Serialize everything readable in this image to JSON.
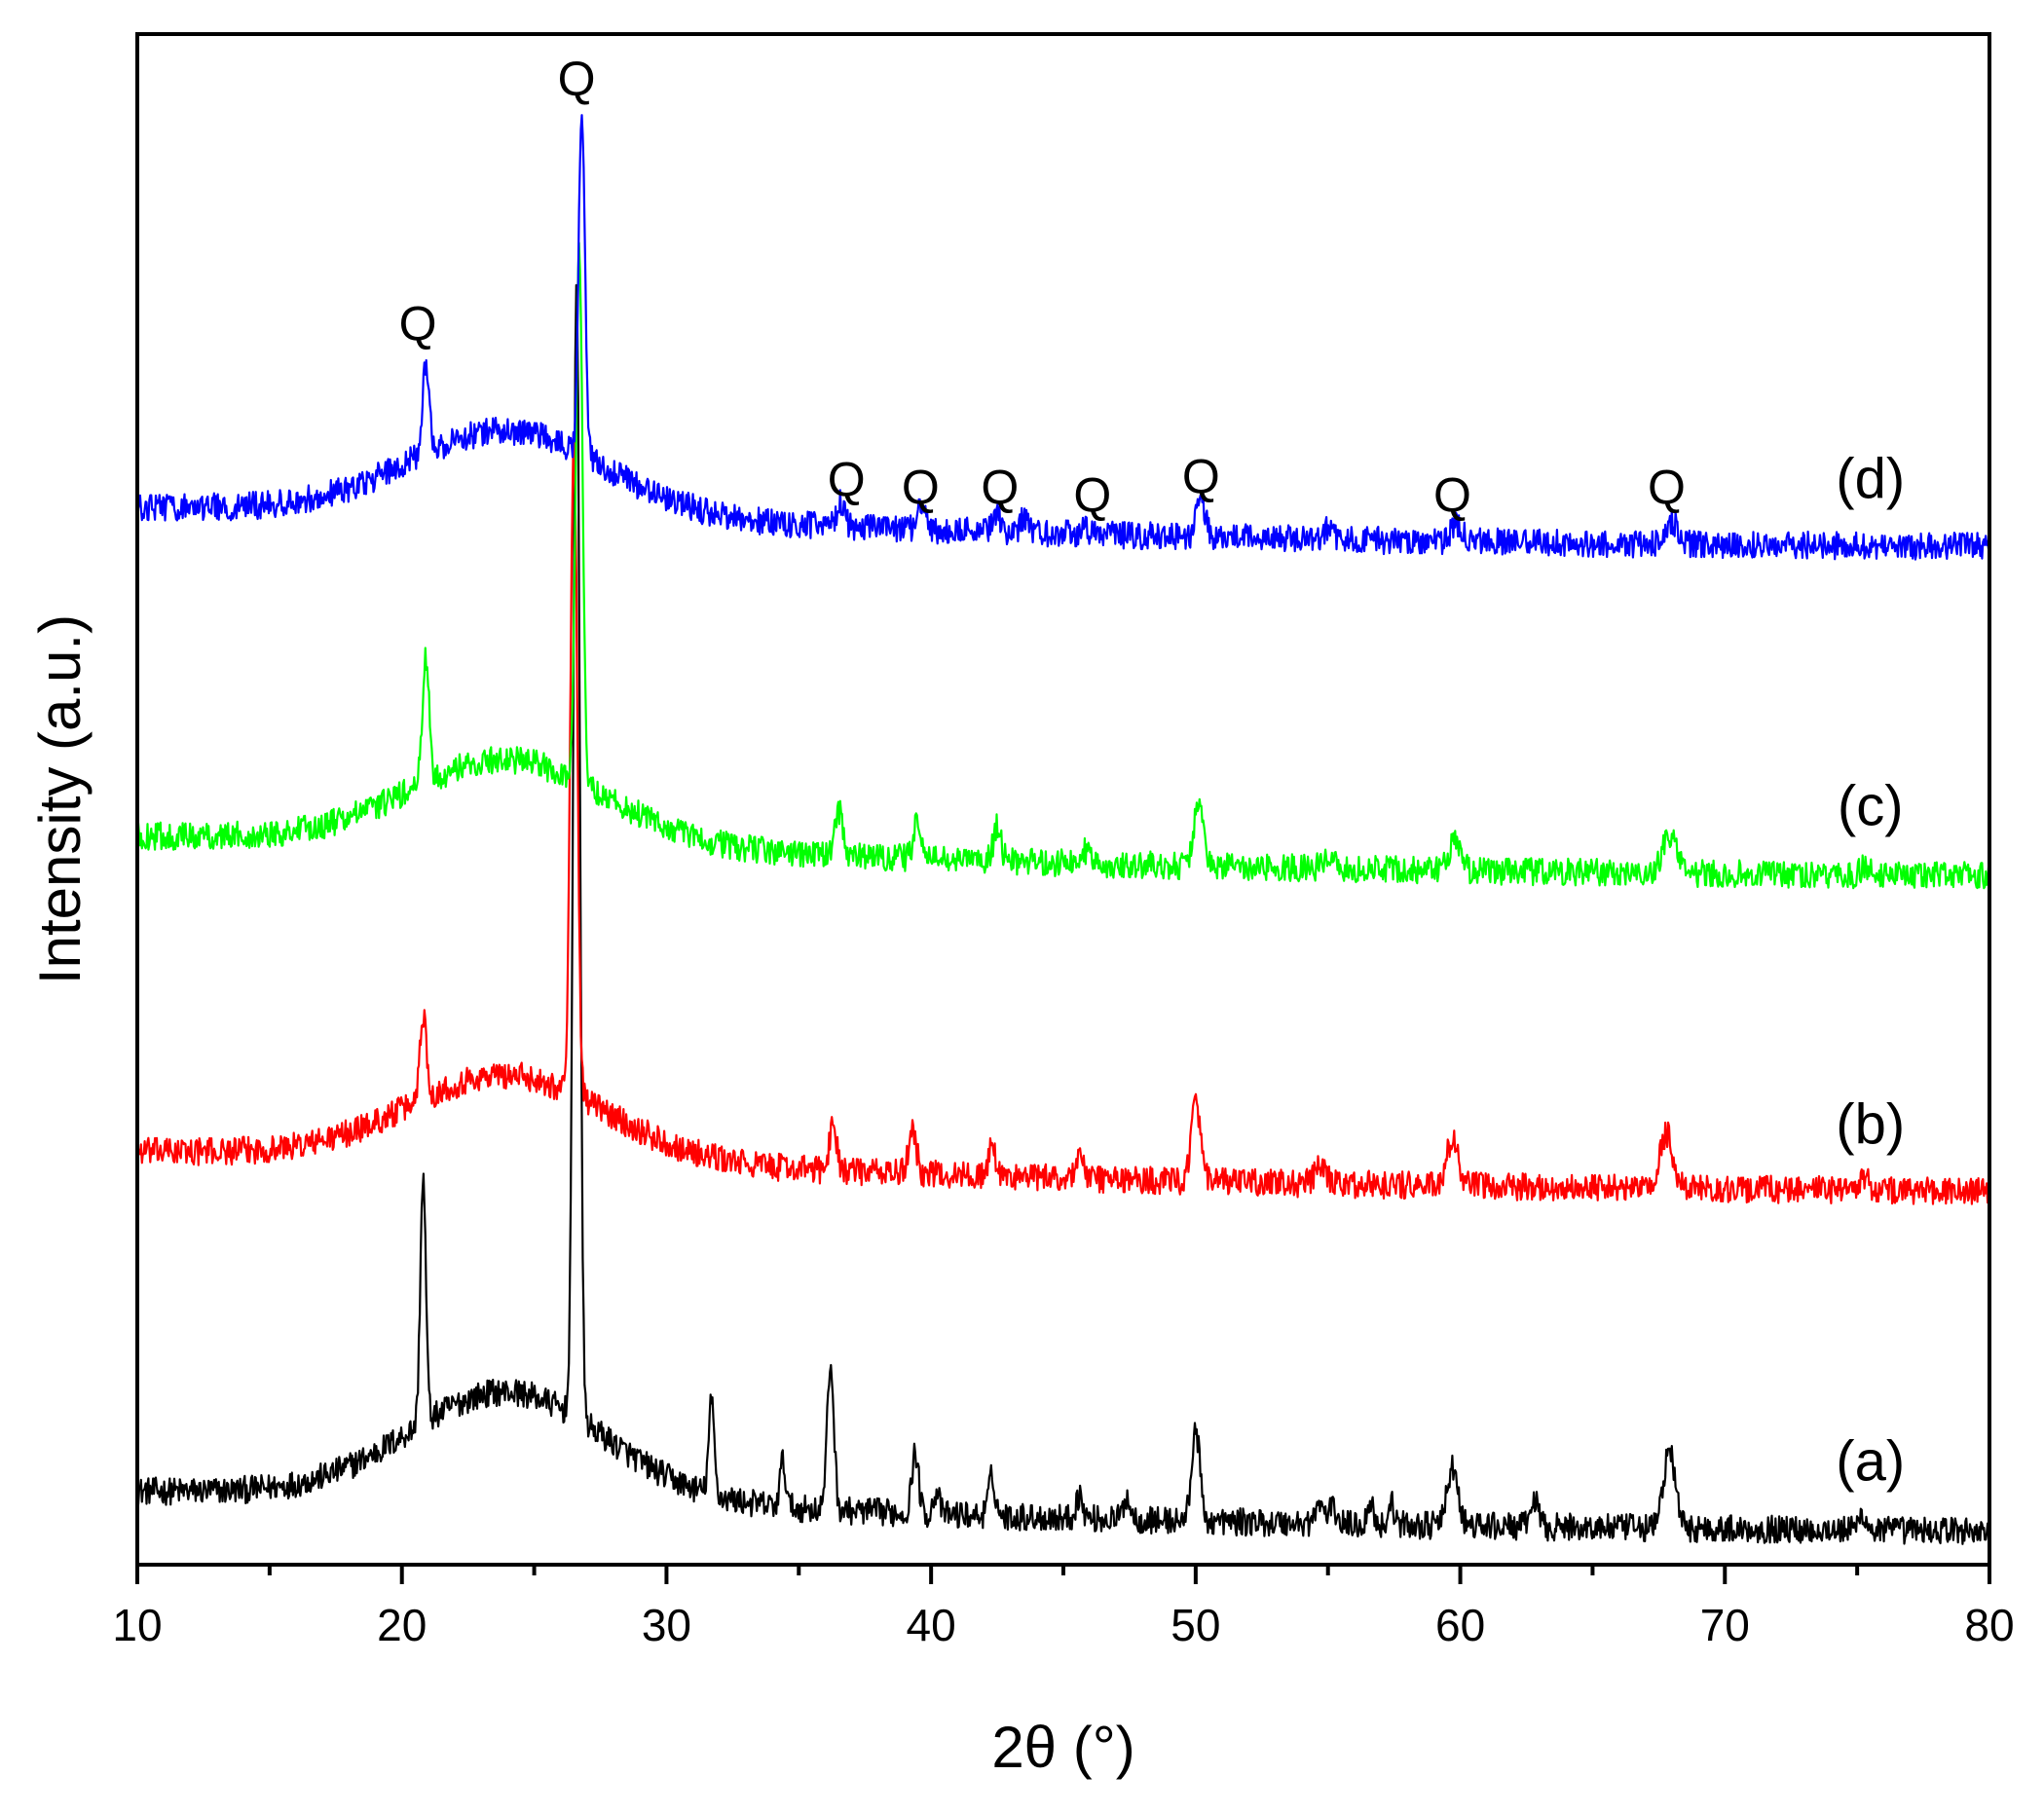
{
  "chart_data": {
    "type": "line",
    "xlabel": "2θ (°)",
    "ylabel": "Intensity (a.u.)",
    "xlim": [
      10,
      80
    ],
    "ylim": [
      0,
      1000
    ],
    "x_ticks": [
      10,
      20,
      30,
      40,
      50,
      60,
      70,
      80
    ],
    "y_ticks_shown": false,
    "grid": false,
    "series": [
      {
        "name": "(a)",
        "color": "#000000",
        "baseline": 30,
        "hump": 70,
        "noise": 9,
        "peaks": [
          [
            20.8,
            160,
            0.15
          ],
          [
            26.6,
            750,
            0.17
          ],
          [
            31.7,
            60,
            0.15
          ],
          [
            34.4,
            30,
            0.15
          ],
          [
            36.2,
            95,
            0.18
          ],
          [
            39.4,
            40,
            0.18
          ],
          [
            40.2,
            15,
            0.15
          ],
          [
            42.3,
            25,
            0.18
          ],
          [
            45.6,
            15,
            0.18
          ],
          [
            47.4,
            15,
            0.18
          ],
          [
            50.0,
            60,
            0.22
          ],
          [
            54.7,
            12,
            0.25
          ],
          [
            55.2,
            10,
            0.2
          ],
          [
            56.6,
            16,
            0.15
          ],
          [
            57.4,
            14,
            0.15
          ],
          [
            59.7,
            38,
            0.28
          ],
          [
            62.8,
            18,
            0.2
          ],
          [
            67.9,
            50,
            0.32
          ],
          [
            75.2,
            10,
            0.2
          ]
        ]
      },
      {
        "name": "(b)",
        "color": "#ff0000",
        "baseline": 252,
        "hump": 55,
        "noise": 9,
        "peaks": [
          [
            20.8,
            55,
            0.18
          ],
          [
            26.5,
            430,
            0.18
          ],
          [
            36.3,
            30,
            0.2
          ],
          [
            39.3,
            30,
            0.2
          ],
          [
            42.3,
            18,
            0.2
          ],
          [
            45.6,
            16,
            0.2
          ],
          [
            50.0,
            50,
            0.25
          ],
          [
            54.7,
            10,
            0.3
          ],
          [
            59.7,
            30,
            0.3
          ],
          [
            67.8,
            35,
            0.35
          ],
          [
            75.3,
            8,
            0.2
          ]
        ]
      },
      {
        "name": "(c)",
        "color": "#00ff00",
        "baseline": 458,
        "hump": 55,
        "noise": 9,
        "peaks": [
          [
            20.9,
            80,
            0.18
          ],
          [
            26.7,
            345,
            0.18
          ],
          [
            36.5,
            30,
            0.2
          ],
          [
            39.5,
            25,
            0.2
          ],
          [
            42.5,
            22,
            0.2
          ],
          [
            45.8,
            8,
            0.2
          ],
          [
            50.1,
            40,
            0.25
          ],
          [
            55.0,
            8,
            0.3
          ],
          [
            59.8,
            20,
            0.3
          ],
          [
            67.9,
            25,
            0.35
          ],
          [
            75.3,
            6,
            0.2
          ]
        ]
      },
      {
        "name": "(d)",
        "color": "#0000ff",
        "baseline": 673,
        "hump": 55,
        "noise": 9,
        "peaks": [
          [
            20.9,
            60,
            0.18
          ],
          [
            26.8,
            225,
            0.17
          ],
          [
            36.6,
            16,
            0.2
          ],
          [
            39.6,
            16,
            0.2
          ],
          [
            42.5,
            12,
            0.2
          ],
          [
            43.5,
            8,
            0.2
          ],
          [
            45.8,
            6,
            0.2
          ],
          [
            50.2,
            22,
            0.25
          ],
          [
            55.0,
            6,
            0.3
          ],
          [
            59.9,
            12,
            0.3
          ],
          [
            68.0,
            14,
            0.35
          ]
        ]
      }
    ],
    "peak_annotations": [
      {
        "text": "Q",
        "x": 20.6,
        "y": 800
      },
      {
        "text": "Q",
        "x": 26.6,
        "y": 960
      },
      {
        "text": "Q",
        "x": 36.8,
        "y": 698
      },
      {
        "text": "Q",
        "x": 39.6,
        "y": 693
      },
      {
        "text": "Q",
        "x": 42.6,
        "y": 693
      },
      {
        "text": "Q",
        "x": 46.1,
        "y": 688
      },
      {
        "text": "Q",
        "x": 50.2,
        "y": 700
      },
      {
        "text": "Q",
        "x": 59.7,
        "y": 688
      },
      {
        "text": "Q",
        "x": 67.8,
        "y": 693
      }
    ],
    "curve_labels": [
      {
        "text": "(a)",
        "x": 75.5,
        "y": 55
      },
      {
        "text": "(b)",
        "x": 75.5,
        "y": 275
      },
      {
        "text": "(c)",
        "x": 75.5,
        "y": 483
      },
      {
        "text": "(d)",
        "x": 75.5,
        "y": 697
      }
    ]
  }
}
